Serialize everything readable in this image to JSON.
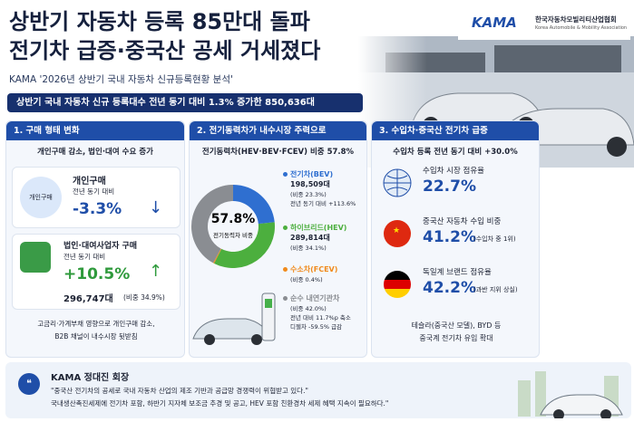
{
  "header": {
    "title_line1": "상반기 자동차 등록 85만대 돌파",
    "title_line2": "전기차 급증·중국산 공세 거세졌다",
    "subtitle": "KAMA '2026년 상반기 국내 자동차 신규등록현황 분석'",
    "banner": "상반기 국내 자동차 신규 등록대수 전년 동기 대비 1.3% 증가한 850,636대"
  },
  "logo": {
    "mark": "KAMA",
    "name_ko": "한국자동차모빌리티산업협회",
    "name_en": "Korea Automobile & Mobility Association"
  },
  "panel1": {
    "title": "1. 구매 형태 변화",
    "subtitle": "개인구매 감소, 법인·대여 수요 증가",
    "icon_label": "개인구매",
    "a_label": "개인구매",
    "a_note": "전년 동기 대비",
    "a_value": "-3.3%",
    "b_label": "법인·대여사업자 구매",
    "b_note": "전년 동기 대비",
    "b_value": "+10.5%",
    "b_count": "296,747대",
    "b_share": "(비중 34.9%)",
    "footer_line1": "고금리·가계부채 영향으로 개인구매 감소,",
    "footer_line2": "B2B 채널이 내수시장 뒷받침"
  },
  "panel2": {
    "title": "2. 전기동력차가 내수시장 주력으로",
    "subtitle": "전기동력차(HEV·BEV·FCEV) 비중 57.8%",
    "center_value": "57.8%",
    "center_label": "전기동력차 비중",
    "segments": [
      {
        "name": "전기차(BEV)",
        "count": "198,509대",
        "share_label": "(비중 23.3%)",
        "share": 23.3,
        "note": "전년 동기 대비 +113.6%",
        "color": "#2f6fd0"
      },
      {
        "name": "하이브리드(HEV)",
        "count": "289,814대",
        "share_label": "(비중 34.1%)",
        "share": 34.1,
        "color": "#4caf3e"
      },
      {
        "name": "수소차(FCEV)",
        "share_label": "(비중 0.4%)",
        "share": 0.4,
        "color": "#f08a1c"
      },
      {
        "name": "순수 내연기관차",
        "share_label": "(비중 42.0%)",
        "share": 42.0,
        "note": "전년 대비 11.7%p 축소",
        "note2": "디젤차 -59.5% 급감",
        "color": "#8a8d92"
      }
    ]
  },
  "panel3": {
    "title": "3. 수입차·중국산 전기차 급증",
    "subtitle": "수입차 등록 전년 동기 대비 +30.0%",
    "items": [
      {
        "label": "수입차 시장 점유율",
        "value": "22.7%"
      },
      {
        "label": "중국산 자동차 수입 비중",
        "value": "41.2%",
        "note": "(수입차 중 1위)"
      },
      {
        "label": "독일계 브랜드 점유율",
        "value": "42.2%",
        "note": "(과반 지위 상실)"
      }
    ],
    "footer_line1": "테슬라(중국산 모델), BYD 등",
    "footer_line2": "중국계 전기차 유입 확대"
  },
  "quote": {
    "speaker": "KAMA 정대진 회장",
    "line1": "\"중국산 전기차의 공세로 국내 자동차 산업의 제조 기반과 공급망 경쟁력이 위협받고 있다.\"",
    "line2": "국내생산촉진세제에 전기차 포함, 하반기 지자체 보조금 추경 및 공고, HEV 포함 친환경차 세제 혜택 지속이 필요하다.\""
  }
}
